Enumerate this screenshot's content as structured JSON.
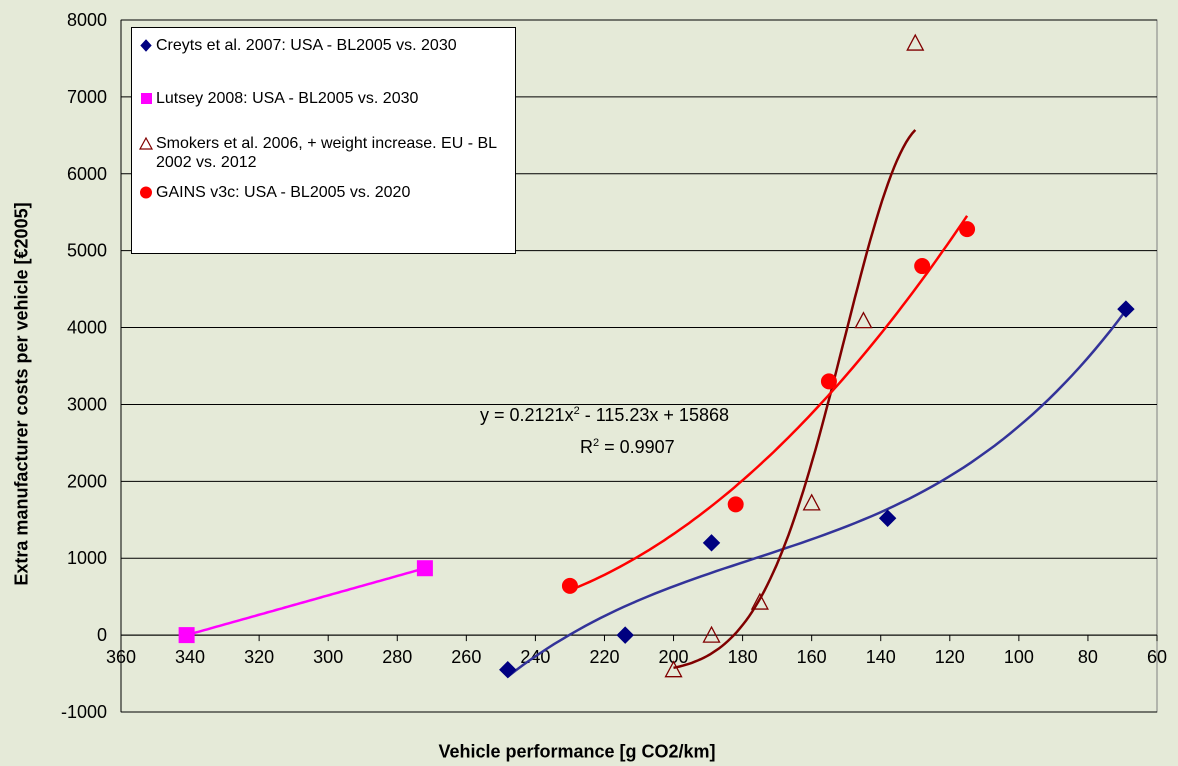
{
  "chart_data": {
    "type": "scatter",
    "xlabel": "Vehicle performance [g CO2/km]",
    "ylabel": "Extra manufacturer costs per vehicle [€2005]",
    "xlim": [
      360,
      60
    ],
    "ylim": [
      -1000,
      8000
    ],
    "x_reversed": true,
    "x_ticks": [
      360,
      340,
      320,
      300,
      280,
      260,
      240,
      220,
      200,
      180,
      160,
      140,
      120,
      100,
      80,
      60
    ],
    "y_ticks": [
      -1000,
      0,
      1000,
      2000,
      3000,
      4000,
      5000,
      6000,
      7000,
      8000
    ],
    "grid": "horizontal",
    "legend_position": "top-left",
    "series": [
      {
        "name": "Creyts et al. 2007: USA - BL2005 vs. 2030",
        "marker": "diamond",
        "color": "#000080",
        "x": [
          248,
          214,
          189,
          138,
          69
        ],
        "y": [
          -450,
          0,
          1200,
          1520,
          4240
        ]
      },
      {
        "name": "Lutsey 2008: USA - BL2005 vs. 2030",
        "marker": "square",
        "color": "#ff00ff",
        "x": [
          341,
          272
        ],
        "y": [
          0,
          870
        ]
      },
      {
        "name": "Smokers et al. 2006, + weight increase. EU - BL 2002 vs. 2012",
        "marker": "triangle-open",
        "color": "#800000",
        "x": [
          200,
          189,
          175,
          160,
          145,
          130
        ],
        "y": [
          -450,
          0,
          430,
          1720,
          4090,
          7700
        ]
      },
      {
        "name": "GAINS v3c: USA - BL2005 vs. 2020",
        "marker": "circle",
        "color": "#ff0000",
        "x": [
          230,
          182,
          155,
          128,
          115
        ],
        "y": [
          640,
          1700,
          3300,
          4800,
          5280
        ]
      }
    ],
    "trendlines": [
      {
        "series": "Creyts et al. 2007: USA - BL2005 vs. 2030",
        "color": "#333399",
        "x_range": [
          248,
          69
        ]
      },
      {
        "series": "Lutsey 2008: USA - BL2005 vs. 2030",
        "color": "#ff00ff",
        "x_range": [
          341,
          272
        ]
      },
      {
        "series": "Smokers et al. 2006, + weight increase. EU - BL 2002 vs. 2012",
        "color": "#800000",
        "x_range": [
          200,
          130
        ]
      },
      {
        "series": "GAINS v3c: USA - BL2005 vs. 2020",
        "color": "#ff0000",
        "x_range": [
          230,
          115
        ]
      }
    ],
    "annotations": {
      "equation_prefix": "y = 0.2121x",
      "equation_sup": "2",
      "equation_suffix": " - 115.23x + 15868",
      "r2_prefix": "R",
      "r2_sup": "2",
      "r2_suffix": " = 0.9907"
    }
  },
  "colors": {
    "background": "#e5ead8",
    "plot_area": "#e5ead8",
    "gridline": "#000000"
  }
}
